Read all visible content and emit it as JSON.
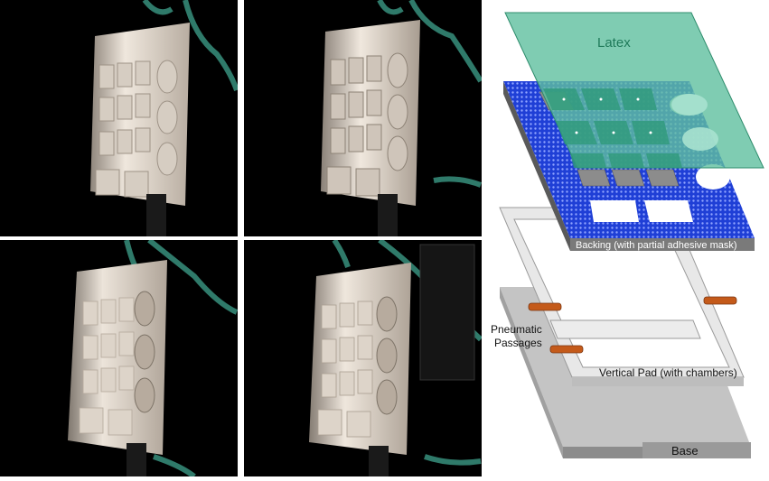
{
  "diagram": {
    "latex_label": "Latex",
    "backing_label": "Backing (with partial adhesive mask)",
    "pneumatic_label_line1": "Pneumatic",
    "pneumatic_label_line2": "Passages",
    "vertical_pad_label": "Vertical Pad (with chambers)",
    "base_label": "Base"
  },
  "colors": {
    "latex_fill": "#5fbf9f",
    "latex_stroke": "#2e8c6c",
    "latex_text": "#1f7a5a",
    "backing_fill": "#1f3fd6",
    "backing_dots": "#8fa3ff",
    "gray_panel": "#bdbdbd",
    "base_top": "#c4c4c4",
    "base_side": "#8c8c8c",
    "tube": "#c45a1a",
    "photo_background": "#000000",
    "hose": "#2f7a6a",
    "pad_face": "#e6ddd3"
  },
  "photos": [
    {
      "name": "photo-top-left"
    },
    {
      "name": "photo-top-right"
    },
    {
      "name": "photo-bottom-left"
    },
    {
      "name": "photo-bottom-right"
    }
  ]
}
